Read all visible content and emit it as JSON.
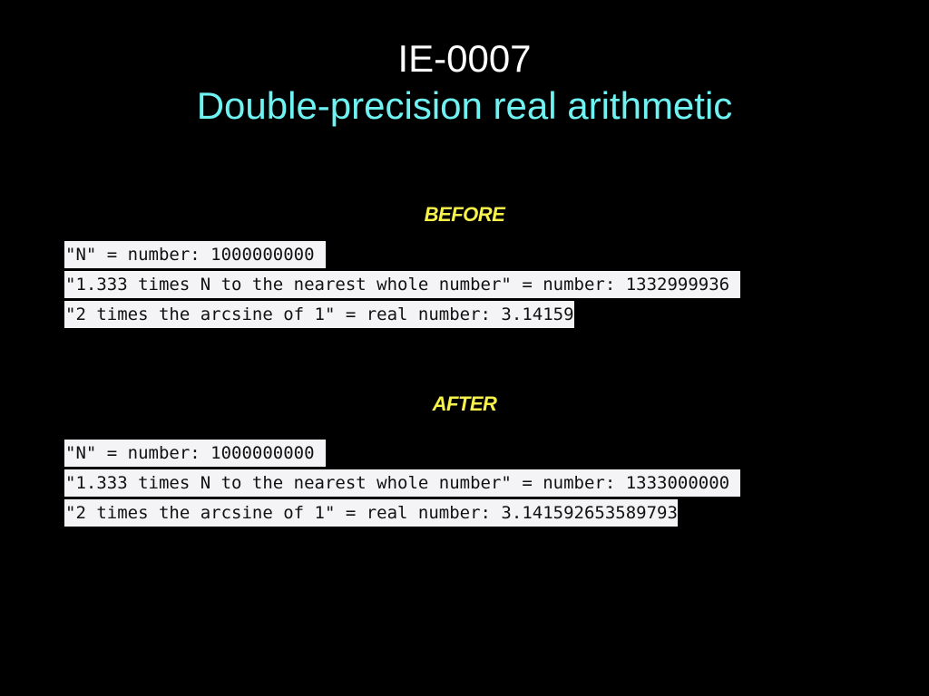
{
  "slide": {
    "id": "IE-0007",
    "title": "Double-precision real arithmetic"
  },
  "before": {
    "label": "BEFORE",
    "lines": [
      "\"N\" = number: 1000000000",
      "\"1.333 times N to the nearest whole number\" = number: 1332999936",
      "\"2 times the arcsine of 1\" = real number: 3.14159"
    ]
  },
  "after": {
    "label": "AFTER",
    "lines": [
      "\"N\" = number: 1000000000",
      "\"1.333 times N to the nearest whole number\" = number: 1333000000",
      "\"2 times the arcsine of 1\" = real number: 3.141592653589793"
    ]
  },
  "colors": {
    "background": "#000000",
    "title_id": "#ffffff",
    "title_main": "#6ff2f2",
    "section_label": "#f6f24a",
    "code_background": "#f4f4f6"
  }
}
